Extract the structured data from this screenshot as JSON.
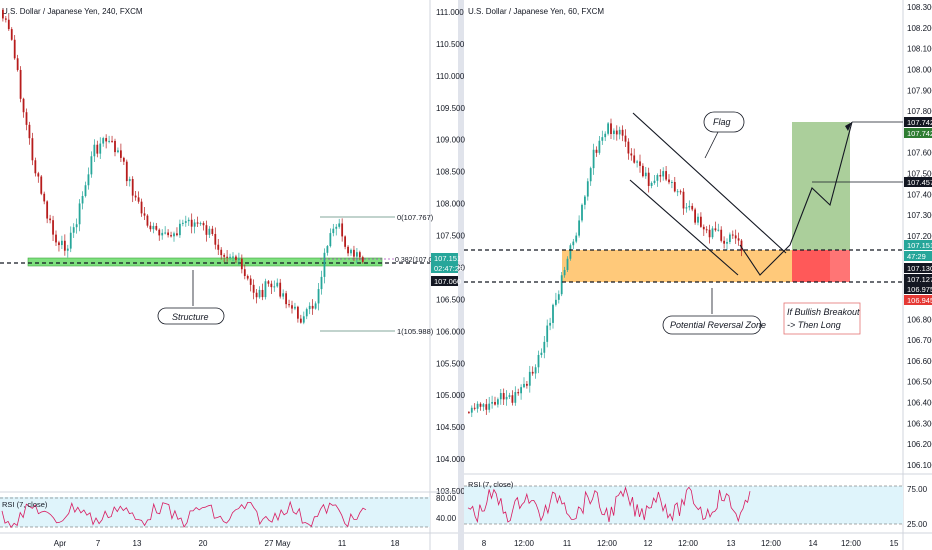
{
  "colors": {
    "up": "#26a69a",
    "down": "#b71c1c",
    "support_band": "#7ee07e",
    "zone_orange": "#ffb74d",
    "profit_green": "#8fbf7a",
    "stop_red": "#ff5252",
    "rsi_line": "#d81b60",
    "rsi_fill": "#dff4fb"
  },
  "chart_data": [
    {
      "type": "candlestick",
      "title": "U.S. Dollar / Japanese Yen, 240, FXCM",
      "ylim": [
        103.3,
        111.25
      ],
      "y_ticks": [
        "111.000",
        "110.500",
        "110.000",
        "109.500",
        "109.000",
        "108.500",
        "108.000",
        "107.500",
        "107.000",
        "106.500",
        "106.000",
        "105.500",
        "105.000",
        "104.500",
        "104.000",
        "103.500"
      ],
      "x_ticks": [
        "Apr",
        "7",
        "13",
        "20",
        "27",
        "May",
        "11",
        "18"
      ],
      "price_badges": [
        {
          "text": "107.151",
          "bg": "#26a69a"
        },
        {
          "text": "02:47:29",
          "bg": "#26a69a"
        },
        {
          "text": "107.060",
          "bg": "#131722"
        }
      ],
      "support_level": 107.06,
      "fib_levels": [
        {
          "label": "0(107.767)",
          "value": 107.767
        },
        {
          "label": "0.382(107.06)",
          "value": 107.06
        },
        {
          "label": "1(105.988)",
          "value": 105.988
        }
      ],
      "annotation": "Structure",
      "rsi": {
        "label": "RSI (7, close)",
        "ticks": [
          "80.00",
          "40.00"
        ]
      }
    },
    {
      "type": "candlestick",
      "title": "U.S. Dollar / Japanese Yen, 60, FXCM",
      "ylim": [
        106.05,
        108.4
      ],
      "y_ticks": [
        "108.300",
        "108.200",
        "108.100",
        "108.000",
        "107.900",
        "107.800",
        "107.700",
        "107.600",
        "107.500",
        "107.400",
        "107.300",
        "107.200",
        "107.100",
        "107.000",
        "106.900",
        "106.800",
        "106.700",
        "106.600",
        "106.500",
        "106.400",
        "106.300",
        "106.200",
        "106.100"
      ],
      "x_ticks": [
        "8",
        "12:00",
        "11",
        "12:00",
        "12",
        "12:00",
        "13",
        "12:00",
        "14",
        "12:00",
        "15"
      ],
      "price_badges": [
        {
          "text": "107.742",
          "bg": "#131722"
        },
        {
          "text": "107.742",
          "bg": "#2e7d32"
        },
        {
          "text": "107.457",
          "bg": "#131722"
        },
        {
          "text": "107.151",
          "bg": "#26a69a"
        },
        {
          "text": "47:29",
          "bg": "#26a69a"
        },
        {
          "text": "107.130",
          "bg": "#131722"
        },
        {
          "text": "107.127",
          "bg": "#131722"
        },
        {
          "text": "106.975",
          "bg": "#131722"
        },
        {
          "text": "106.945",
          "bg": "#e53935"
        }
      ],
      "zone_top": 107.13,
      "zone_bottom": 106.975,
      "target": 107.742,
      "entry": 107.13,
      "stop": 106.945,
      "annotations": [
        "Flag",
        "Potential Reversal Zone"
      ],
      "note_lines": [
        "If Bullish Breakout",
        "-> Then Long"
      ],
      "rsi": {
        "label": "RSI (7, close)",
        "ticks": [
          "75.00",
          "25.00"
        ]
      }
    }
  ]
}
